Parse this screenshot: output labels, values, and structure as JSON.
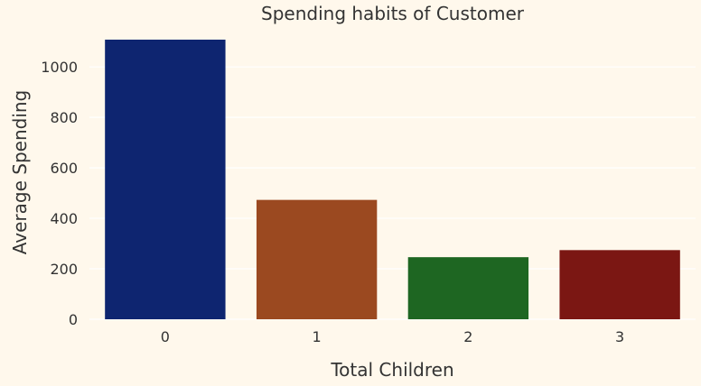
{
  "chart_data": {
    "type": "bar",
    "title": "Spending habits of Customer",
    "xlabel": "Total Children",
    "ylabel": "Average Spending",
    "categories": [
      "0",
      "1",
      "2",
      "3"
    ],
    "values": [
      1108,
      473,
      246,
      274
    ],
    "ylim": [
      0,
      1165
    ],
    "yticks": [
      0,
      200,
      400,
      600,
      800,
      1000
    ],
    "grid": true,
    "legend": "none",
    "colors": [
      "#0e2570",
      "#9b4920",
      "#1e6622",
      "#7b1713"
    ],
    "background": "#fff8ec",
    "grid_color": "#ffffff"
  }
}
